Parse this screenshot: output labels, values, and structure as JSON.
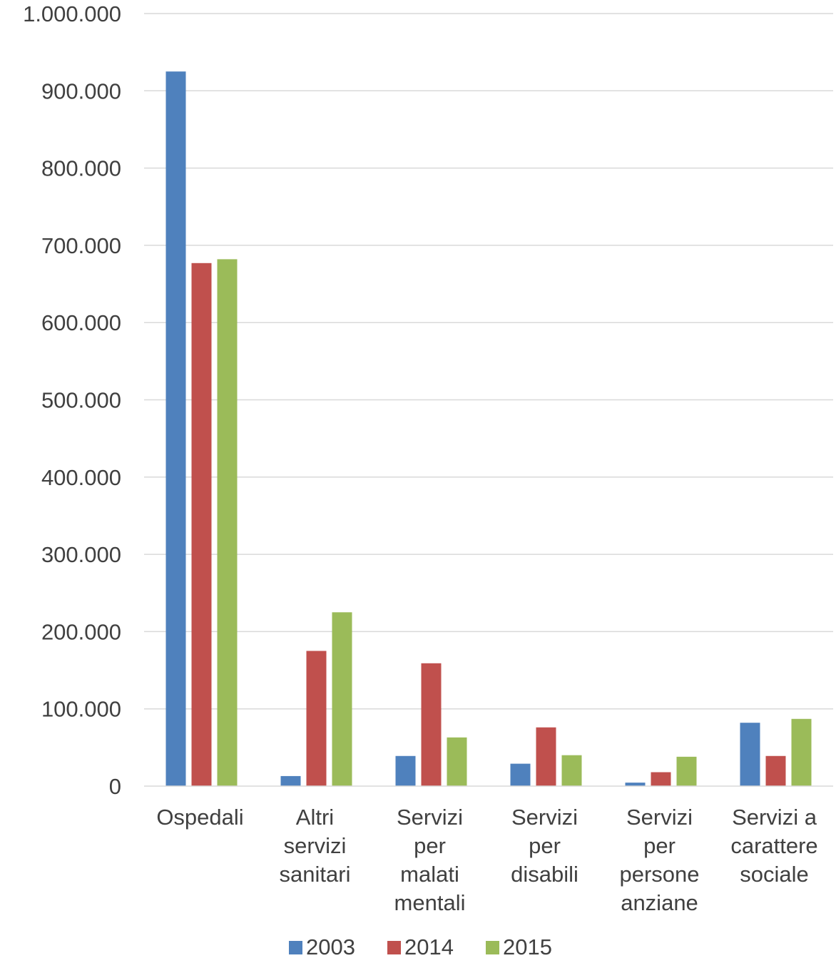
{
  "chart_data": {
    "type": "bar",
    "categories": [
      [
        "Ospedali"
      ],
      [
        "Altri",
        "servizi",
        "sanitari"
      ],
      [
        "Servizi",
        "per",
        "malati",
        "mentali"
      ],
      [
        "Servizi",
        "per",
        "disabili"
      ],
      [
        "Servizi",
        "per",
        "persone",
        "anziane"
      ],
      [
        "Servizi a",
        "carattere",
        "sociale"
      ]
    ],
    "series": [
      {
        "name": "2003",
        "color": "#4f81bd",
        "values": [
          925000,
          13000,
          39000,
          29000,
          4500,
          82000
        ]
      },
      {
        "name": "2014",
        "color": "#c0504d",
        "values": [
          677000,
          175000,
          159000,
          76000,
          18000,
          39000
        ]
      },
      {
        "name": "2015",
        "color": "#9bbb59",
        "values": [
          682000,
          225000,
          63000,
          40000,
          38000,
          87000
        ]
      }
    ],
    "ylim": [
      0,
      1000000
    ],
    "yticks": [
      0,
      100000,
      200000,
      300000,
      400000,
      500000,
      600000,
      700000,
      800000,
      900000,
      1000000
    ],
    "ytick_labels": [
      "0",
      "100.000",
      "200.000",
      "300.000",
      "400.000",
      "500.000",
      "600.000",
      "700.000",
      "800.000",
      "900.000",
      "1.000.000"
    ],
    "grid": true,
    "legend": "bottom",
    "title": "",
    "xlabel": "",
    "ylabel": ""
  }
}
